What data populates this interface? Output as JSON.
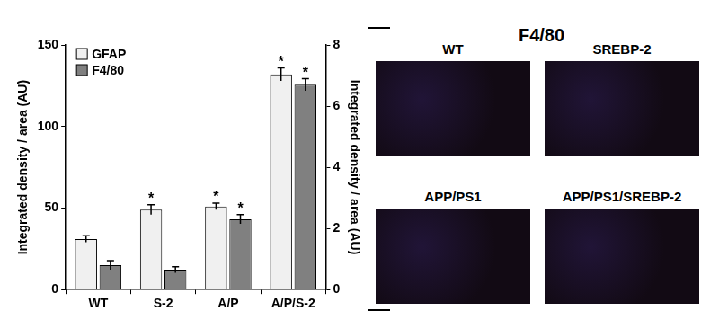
{
  "chart_data": {
    "type": "bar",
    "categories": [
      "WT",
      "S-2",
      "A/P",
      "A/P/S-2"
    ],
    "y_label": "Integrated density / area (AU)",
    "y2_label": "Integrated density / area (AU)",
    "series": [
      {
        "name": "GFAP",
        "color": "#f0f0f0",
        "values": [
          31,
          49,
          51,
          132
        ],
        "errors": [
          2,
          3,
          2,
          4
        ],
        "significance": [
          null,
          "*",
          "*",
          "*"
        ]
      },
      {
        "name": "F4/80",
        "color": "#808080",
        "axis": "y2",
        "values": [
          0.8,
          0.65,
          2.3,
          6.7
        ],
        "errors": [
          0.15,
          0.1,
          0.15,
          0.2
        ],
        "significance": [
          null,
          null,
          "*",
          "*"
        ]
      }
    ],
    "ylim": [
      0,
      150
    ],
    "yticks": [
      0,
      50,
      100,
      150
    ],
    "y2lim": [
      0,
      8
    ],
    "y2ticks": [
      0,
      2,
      4,
      6,
      8
    ],
    "grid": false,
    "legend": "upper left"
  },
  "image_panel": {
    "title": "F4/80",
    "panels": [
      "WT",
      "SREBP-2",
      "APP/PS1",
      "APP/PS1/SREBP-2"
    ]
  }
}
